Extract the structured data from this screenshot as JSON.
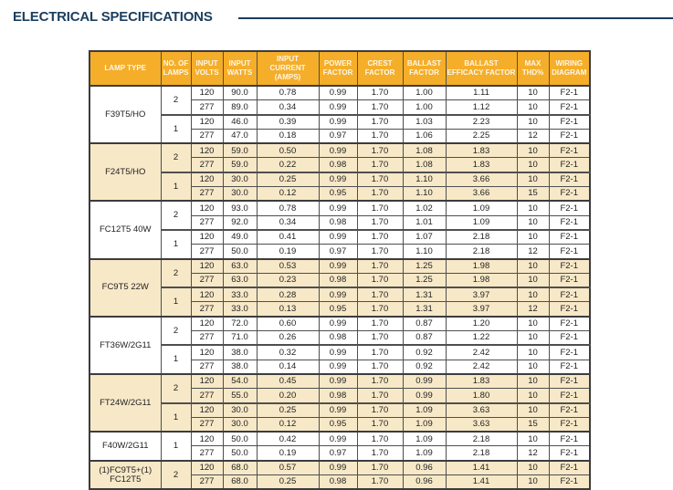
{
  "title": "ELECTRICAL SPECIFICATIONS",
  "colors": {
    "title": "#1c3e5e",
    "header_bg": "#f5ae29",
    "shaded_row": "#f7e8c7",
    "border": "#4f4f51"
  },
  "table": {
    "headers": [
      "LAMP TYPE",
      "NO. OF LAMPS",
      "INPUT VOLTS",
      "INPUT WATTS",
      "INPUT CURRENT (AMPS)",
      "POWER FACTOR",
      "CREST FACTOR",
      "BALLAST FACTOR",
      "BALLAST EFFICACY FACTOR",
      "MAX THD%",
      "WIRING DIAGRAM"
    ],
    "groups": [
      {
        "lamp_type": "F39T5/HO",
        "shaded": false,
        "lamp_sets": [
          {
            "lamps": "2",
            "rows": [
              [
                "120",
                "90.0",
                "0.78",
                "0.99",
                "1.70",
                "1.00",
                "1.11",
                "10",
                "F2-1"
              ],
              [
                "277",
                "89.0",
                "0.34",
                "0.99",
                "1.70",
                "1.00",
                "1.12",
                "10",
                "F2-1"
              ]
            ]
          },
          {
            "lamps": "1",
            "rows": [
              [
                "120",
                "46.0",
                "0.39",
                "0.99",
                "1.70",
                "1.03",
                "2.23",
                "10",
                "F2-1"
              ],
              [
                "277",
                "47.0",
                "0.18",
                "0.97",
                "1.70",
                "1.06",
                "2.25",
                "12",
                "F2-1"
              ]
            ]
          }
        ]
      },
      {
        "lamp_type": "F24T5/HO",
        "shaded": true,
        "lamp_sets": [
          {
            "lamps": "2",
            "rows": [
              [
                "120",
                "59.0",
                "0.50",
                "0.99",
                "1.70",
                "1.08",
                "1.83",
                "10",
                "F2-1"
              ],
              [
                "277",
                "59.0",
                "0.22",
                "0.98",
                "1.70",
                "1.08",
                "1.83",
                "10",
                "F2-1"
              ]
            ]
          },
          {
            "lamps": "1",
            "rows": [
              [
                "120",
                "30.0",
                "0.25",
                "0.99",
                "1.70",
                "1.10",
                "3.66",
                "10",
                "F2-1"
              ],
              [
                "277",
                "30.0",
                "0.12",
                "0.95",
                "1.70",
                "1.10",
                "3.66",
                "15",
                "F2-1"
              ]
            ]
          }
        ]
      },
      {
        "lamp_type": "FC12T5 40W",
        "shaded": false,
        "lamp_sets": [
          {
            "lamps": "2",
            "rows": [
              [
                "120",
                "93.0",
                "0.78",
                "0.99",
                "1.70",
                "1.02",
                "1.09",
                "10",
                "F2-1"
              ],
              [
                "277",
                "92.0",
                "0.34",
                "0.98",
                "1.70",
                "1.01",
                "1.09",
                "10",
                "F2-1"
              ]
            ]
          },
          {
            "lamps": "1",
            "rows": [
              [
                "120",
                "49.0",
                "0.41",
                "0.99",
                "1.70",
                "1.07",
                "2.18",
                "10",
                "F2-1"
              ],
              [
                "277",
                "50.0",
                "0.19",
                "0.97",
                "1.70",
                "1.10",
                "2.18",
                "12",
                "F2-1"
              ]
            ]
          }
        ]
      },
      {
        "lamp_type": "FC9T5 22W",
        "shaded": true,
        "lamp_sets": [
          {
            "lamps": "2",
            "rows": [
              [
                "120",
                "63.0",
                "0.53",
                "0.99",
                "1.70",
                "1.25",
                "1.98",
                "10",
                "F2-1"
              ],
              [
                "277",
                "63.0",
                "0.23",
                "0.98",
                "1.70",
                "1.25",
                "1.98",
                "10",
                "F2-1"
              ]
            ]
          },
          {
            "lamps": "1",
            "rows": [
              [
                "120",
                "33.0",
                "0.28",
                "0.99",
                "1.70",
                "1.31",
                "3.97",
                "10",
                "F2-1"
              ],
              [
                "277",
                "33.0",
                "0.13",
                "0.95",
                "1.70",
                "1.31",
                "3.97",
                "12",
                "F2-1"
              ]
            ]
          }
        ]
      },
      {
        "lamp_type": "FT36W/2G11",
        "shaded": false,
        "lamp_sets": [
          {
            "lamps": "2",
            "rows": [
              [
                "120",
                "72.0",
                "0.60",
                "0.99",
                "1.70",
                "0.87",
                "1.20",
                "10",
                "F2-1"
              ],
              [
                "277",
                "71.0",
                "0.26",
                "0.98",
                "1.70",
                "0.87",
                "1.22",
                "10",
                "F2-1"
              ]
            ]
          },
          {
            "lamps": "1",
            "rows": [
              [
                "120",
                "38.0",
                "0.32",
                "0.99",
                "1.70",
                "0.92",
                "2.42",
                "10",
                "F2-1"
              ],
              [
                "277",
                "38.0",
                "0.14",
                "0.99",
                "1.70",
                "0.92",
                "2.42",
                "10",
                "F2-1"
              ]
            ]
          }
        ]
      },
      {
        "lamp_type": "FT24W/2G11",
        "shaded": true,
        "lamp_sets": [
          {
            "lamps": "2",
            "rows": [
              [
                "120",
                "54.0",
                "0.45",
                "0.99",
                "1.70",
                "0.99",
                "1.83",
                "10",
                "F2-1"
              ],
              [
                "277",
                "55.0",
                "0.20",
                "0.98",
                "1.70",
                "0.99",
                "1.80",
                "10",
                "F2-1"
              ]
            ]
          },
          {
            "lamps": "1",
            "rows": [
              [
                "120",
                "30.0",
                "0.25",
                "0.99",
                "1.70",
                "1.09",
                "3.63",
                "10",
                "F2-1"
              ],
              [
                "277",
                "30.0",
                "0.12",
                "0.95",
                "1.70",
                "1.09",
                "3.63",
                "15",
                "F2-1"
              ]
            ]
          }
        ]
      },
      {
        "lamp_type": "F40W/2G11",
        "shaded": false,
        "lamp_sets": [
          {
            "lamps": "1",
            "rows": [
              [
                "120",
                "50.0",
                "0.42",
                "0.99",
                "1.70",
                "1.09",
                "2.18",
                "10",
                "F2-1"
              ],
              [
                "277",
                "50.0",
                "0.19",
                "0.97",
                "1.70",
                "1.09",
                "2.18",
                "12",
                "F2-1"
              ]
            ]
          }
        ]
      },
      {
        "lamp_type": "(1)FC9T5+(1) FC12T5",
        "shaded": true,
        "lamp_sets": [
          {
            "lamps": "2",
            "rows": [
              [
                "120",
                "68.0",
                "0.57",
                "0.99",
                "1.70",
                "0.96",
                "1.41",
                "10",
                "F2-1"
              ],
              [
                "277",
                "68.0",
                "0.25",
                "0.98",
                "1.70",
                "0.96",
                "1.41",
                "10",
                "F2-1"
              ]
            ]
          }
        ]
      }
    ]
  }
}
